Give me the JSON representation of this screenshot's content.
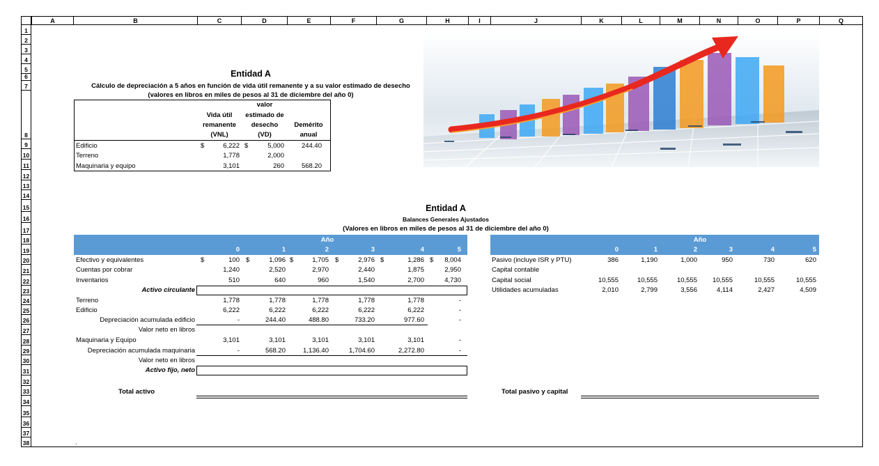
{
  "columns": [
    "A",
    "B",
    "C",
    "D",
    "E",
    "F",
    "G",
    "H",
    "I",
    "J",
    "K",
    "L",
    "M",
    "N",
    "O",
    "P",
    "Q"
  ],
  "rows": [
    "1",
    "2",
    "3",
    "4",
    "5",
    "6",
    "7",
    "8",
    "9",
    "10",
    "11",
    "12",
    "13",
    "14",
    "15",
    "16",
    "17",
    "18",
    "19",
    "20",
    "21",
    "22",
    "23",
    "24",
    "25",
    "26",
    "27",
    "28",
    "29",
    "30",
    "31",
    "32",
    "33",
    "34",
    "35",
    "36",
    "37",
    "38"
  ],
  "top": {
    "title": "Entidad A",
    "subtitle": "Cálculo de depreciación a 5 años en función de vida útil remanente y a su valor estimado de desecho",
    "subtitle2": "(valores en libros en miles de pesos al 31 de diciembre del año 0)",
    "hdr_vnl": [
      "Vida útil",
      "remanente",
      "(VNL)"
    ],
    "hdr_vd": [
      "valor",
      "estimado de",
      "desecho",
      "(VD)"
    ],
    "hdr_dem": [
      "Demérito",
      "anual"
    ],
    "rows": [
      {
        "label": "Edificio",
        "cur1": "$",
        "vnl": "6,222",
        "cur2": "$",
        "vd": "5,000",
        "dem": "244.40"
      },
      {
        "label": "Terreno",
        "cur1": "",
        "vnl": "1,778",
        "cur2": "",
        "vd": "2,000",
        "dem": ""
      },
      {
        "label": "Maquinaria y equipo",
        "cur1": "",
        "vnl": "3,101",
        "cur2": "",
        "vd": "260",
        "dem": "568.20"
      }
    ]
  },
  "bal": {
    "title": "Entidad A",
    "subtitle": "Balances Generales Ajustados",
    "subtitle2": "(Valores en libros en miles de pesos al 31 de diciembre del año 0)",
    "year_label": "Año",
    "years": [
      "0",
      "1",
      "2",
      "3",
      "4",
      "5"
    ],
    "assets": [
      {
        "label": "Efectivo y equivalentes",
        "cur": true,
        "v": [
          "100",
          "1,096",
          "1,705",
          "2,976",
          "1,286",
          "8,004"
        ]
      },
      {
        "label": "Cuentas por cobrar",
        "v": [
          "1,240",
          "2,520",
          "2,970",
          "2,440",
          "1,875",
          "2,950"
        ]
      },
      {
        "label": "Inventarios",
        "v": [
          "510",
          "640",
          "960",
          "1,540",
          "2,700",
          "4,730"
        ]
      },
      {
        "label": "Activo circulante",
        "v": [
          "",
          "",
          "",
          "",
          "",
          ""
        ]
      },
      {
        "label": "Terreno",
        "v": [
          "1,778",
          "1,778",
          "1,778",
          "1,778",
          "1,778",
          "-"
        ]
      },
      {
        "label": "Edificio",
        "v": [
          "6,222",
          "6,222",
          "6,222",
          "6,222",
          "6,222",
          "-"
        ]
      },
      {
        "label": "Depreciación acumulada edificio",
        "v": [
          "-",
          "244.40",
          "488.80",
          "733.20",
          "977.60",
          "-"
        ]
      },
      {
        "label": "Valor neto en libros",
        "v": [
          "",
          "",
          "",
          "",
          "",
          ""
        ]
      },
      {
        "label": "Maquinaria y Equipo",
        "v": [
          "3,101",
          "3,101",
          "3,101",
          "3,101",
          "3,101",
          "-"
        ]
      },
      {
        "label": "Depreciación acumulada maquinaria",
        "v": [
          "-",
          "568.20",
          "1,136.40",
          "1,704.60",
          "2,272.80",
          "-"
        ]
      },
      {
        "label": "Valor neto en libros",
        "v": [
          "",
          "",
          "",
          "",
          "",
          ""
        ]
      },
      {
        "label": "Activo fijo, neto",
        "v": [
          "",
          "",
          "",
          "",
          "",
          ""
        ]
      }
    ],
    "total_activo": "Total activo",
    "liabilities": [
      {
        "label": "Pasivo (incluye ISR y PTU)",
        "v": [
          "386",
          "1,190",
          "1,000",
          "950",
          "730",
          "620"
        ]
      },
      {
        "label": "Capital contable",
        "v": [
          "",
          "",
          "",
          "",
          "",
          ""
        ]
      },
      {
        "label": "Capital social",
        "v": [
          "10,555",
          "10,555",
          "10,555",
          "10,555",
          "10,555",
          "10,555"
        ]
      },
      {
        "label": "Utilidades acumuladas",
        "v": [
          "2,010",
          "2,799",
          "3,556",
          "4,114",
          "2,427",
          "4,509"
        ]
      }
    ],
    "total_pasivo": "Total pasivo y capital",
    "currency": "$",
    "dot": "."
  },
  "image": {
    "icon": "bar-chart-arrow-illustration",
    "arrow_color": "#e8281f",
    "bar_colors": [
      "#f59a1f",
      "#9b59b6",
      "#3fa9f5",
      "#2d7fd3"
    ]
  }
}
